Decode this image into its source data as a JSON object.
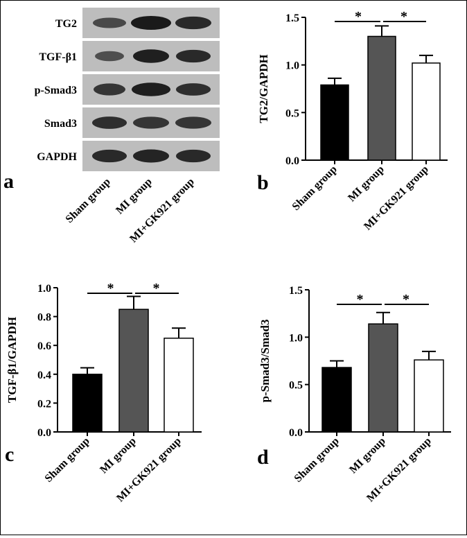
{
  "chart_data": [
    {
      "panel": "a",
      "type": "western-blot",
      "rows": [
        "TG2",
        "TGF-β1",
        "p-Smad3",
        "Smad3",
        "GAPDH"
      ],
      "lanes": [
        "Sham group",
        "MI group",
        "MI+GK921 group"
      ],
      "band_intensity": [
        [
          0.55,
          1.0,
          0.85
        ],
        [
          0.5,
          0.95,
          0.85
        ],
        [
          0.75,
          0.95,
          0.8
        ],
        [
          0.8,
          0.75,
          0.75
        ],
        [
          0.85,
          0.9,
          0.85
        ]
      ]
    },
    {
      "panel": "b",
      "type": "bar",
      "ylabel": "TG2/GAPDH",
      "categories": [
        "Sham group",
        "MI group",
        "MI+GK921 group"
      ],
      "values": [
        0.79,
        1.3,
        1.02
      ],
      "errors": [
        0.07,
        0.11,
        0.08
      ],
      "ylim": [
        0,
        1.5
      ],
      "yticks": [
        "0.0",
        "0.5",
        "1.0",
        "1.5"
      ],
      "significance": [
        {
          "from": 0,
          "to": 1,
          "label": "*"
        },
        {
          "from": 1,
          "to": 2,
          "label": "*"
        }
      ]
    },
    {
      "panel": "c",
      "type": "bar",
      "ylabel": "TGF-β1/GAPDH",
      "categories": [
        "Sham group",
        "MI group",
        "MI+GK921 group"
      ],
      "values": [
        0.4,
        0.85,
        0.65
      ],
      "errors": [
        0.045,
        0.09,
        0.07
      ],
      "ylim": [
        0,
        1.0
      ],
      "yticks": [
        "0.0",
        "0.2",
        "0.4",
        "0.6",
        "0.8",
        "1.0"
      ],
      "significance": [
        {
          "from": 0,
          "to": 1,
          "label": "*"
        },
        {
          "from": 1,
          "to": 2,
          "label": "*"
        }
      ]
    },
    {
      "panel": "d",
      "type": "bar",
      "ylabel": "p-Smad3/Smad3",
      "categories": [
        "Sham group",
        "MI group",
        "MI+GK921 group"
      ],
      "values": [
        0.68,
        1.14,
        0.76
      ],
      "errors": [
        0.07,
        0.12,
        0.09
      ],
      "ylim": [
        0,
        1.5
      ],
      "yticks": [
        "0.0",
        "0.5",
        "1.0",
        "1.5"
      ],
      "significance": [
        {
          "from": 0,
          "to": 1,
          "label": "*"
        },
        {
          "from": 1,
          "to": 2,
          "label": "*"
        }
      ]
    }
  ],
  "colors": {
    "bar_fills": [
      "#000000",
      "#555555",
      "#ffffff"
    ],
    "blot_background": "#bdbdbd"
  }
}
